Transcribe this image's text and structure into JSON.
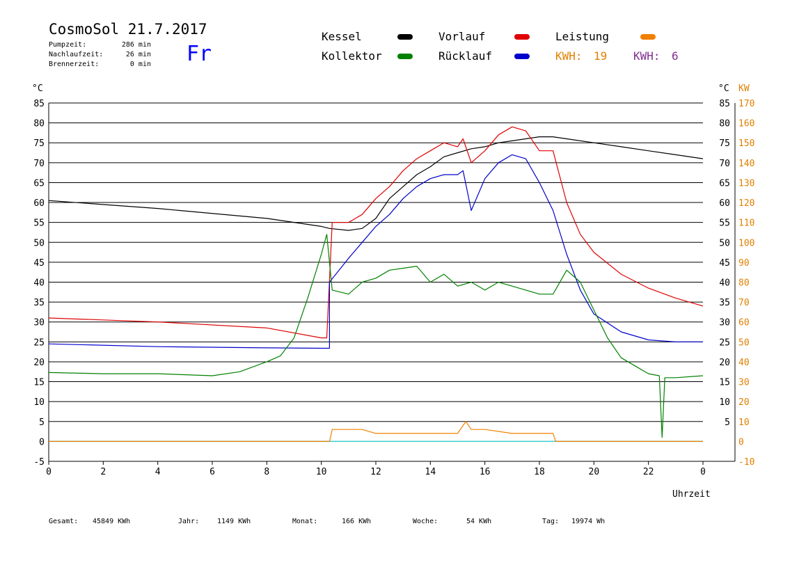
{
  "header": {
    "title": "CosmoSol 21.7.2017",
    "stats": [
      {
        "label": "Pumpzeit:",
        "value": "286 min"
      },
      {
        "label": "Nachlaufzeit:",
        "value": "26 min"
      },
      {
        "label": "Brennerzeit:",
        "value": "0 min"
      }
    ],
    "day": "Fr"
  },
  "legend": {
    "kessel": {
      "label": "Kessel",
      "color": "#000000"
    },
    "kollektor": {
      "label": "Kollektor",
      "color": "#008000"
    },
    "vorlauf": {
      "label": "Vorlauf",
      "color": "#e00000"
    },
    "ruecklauf": {
      "label": "Rücklauf",
      "color": "#0000cc"
    },
    "leistung": {
      "label": "Leistung",
      "color": "#f08000"
    },
    "kwh1": {
      "label": "KWH:",
      "value": "19",
      "color": "#e08000"
    },
    "kwh2": {
      "label": "KWH:",
      "value": "6",
      "color": "#803090"
    }
  },
  "footer": [
    {
      "label": "Gesamt:",
      "value": "45849 KWh"
    },
    {
      "label": "Jahr:",
      "value": "1149 KWh"
    },
    {
      "label": "Monat:",
      "value": "166 KWh"
    },
    {
      "label": "Woche:",
      "value": "54 KWh"
    },
    {
      "label": "Tag:",
      "value": "19974 Wh"
    }
  ],
  "chart_data": {
    "type": "line",
    "xlabel": "Uhrzeit",
    "ylabel_left": "°C",
    "ylabel_right": "°C",
    "ylabel_right2": "KW",
    "xlim": [
      0,
      24
    ],
    "ylim": [
      -5,
      85
    ],
    "ylim_right2": [
      -10,
      170
    ],
    "x_ticks": [
      "0",
      "2",
      "4",
      "6",
      "8",
      "10",
      "12",
      "14",
      "16",
      "18",
      "20",
      "22",
      "0"
    ],
    "y_ticks_left": [
      "85",
      "80",
      "75",
      "70",
      "65",
      "60",
      "55",
      "50",
      "45",
      "40",
      "35",
      "30",
      "25",
      "20",
      "15",
      "10",
      "5",
      "0",
      "-5"
    ],
    "y_ticks_right": [
      "85",
      "80",
      "75",
      "70",
      "65",
      "60",
      "55",
      "50",
      "45",
      "40",
      "35",
      "30",
      "25",
      "20",
      "15",
      "10",
      "5"
    ],
    "y_ticks_right2": [
      "170",
      "160",
      "150",
      "140",
      "130",
      "120",
      "110",
      "100",
      "90",
      "80",
      "70",
      "60",
      "50",
      "40",
      "30",
      "20",
      "10",
      "0",
      "-10"
    ],
    "grid": "horizontal",
    "series": [
      {
        "name": "Kessel",
        "color": "#000000",
        "x": [
          0,
          4,
          8,
          10,
          10.3,
          11,
          11.5,
          12,
          12.5,
          13,
          13.5,
          14,
          14.5,
          15,
          15.5,
          16,
          16.5,
          17,
          17.5,
          18,
          18.5,
          19,
          20,
          21,
          22,
          23,
          24
        ],
        "y": [
          60.5,
          58.5,
          56,
          54,
          53.5,
          53,
          53.5,
          56,
          61,
          64,
          67,
          69,
          71.5,
          72.5,
          73.5,
          74,
          75,
          75.5,
          76,
          76.5,
          76.5,
          76,
          75,
          74,
          73,
          72,
          71
        ]
      },
      {
        "name": "Vorlauf",
        "color": "#e00000",
        "x": [
          0,
          4,
          8,
          10,
          10.2,
          10.4,
          11,
          11.5,
          12,
          12.5,
          13,
          13.5,
          14,
          14.5,
          15,
          15.2,
          15.5,
          16,
          16.5,
          17,
          17.5,
          18,
          18.5,
          19,
          19.5,
          20,
          21,
          22,
          23,
          24
        ],
        "y": [
          31,
          30,
          28.5,
          26,
          26,
          55,
          55,
          57,
          61,
          64,
          68,
          71,
          73,
          75,
          74,
          76,
          70,
          73,
          77,
          79,
          78,
          73,
          73,
          60,
          52,
          47.5,
          42,
          38.5,
          36,
          34
        ]
      },
      {
        "name": "Rücklauf",
        "color": "#0000cc",
        "x": [
          0,
          4,
          8,
          10,
          10.3,
          10.3,
          11,
          11.5,
          12,
          12.5,
          13,
          13.5,
          14,
          14.5,
          15,
          15.2,
          15.5,
          16,
          16.5,
          17,
          17.5,
          18,
          18.5,
          19,
          19.5,
          20,
          21,
          22,
          23,
          24
        ],
        "y": [
          24.5,
          23.8,
          23.5,
          23.4,
          23.4,
          40,
          46,
          50,
          54,
          57,
          61,
          64,
          66,
          67,
          67,
          68,
          58,
          66,
          70,
          72,
          71,
          65,
          58,
          47,
          38,
          32,
          27.5,
          25.5,
          25,
          25
        ]
      },
      {
        "name": "Kollektor",
        "color": "#008000",
        "x": [
          0,
          2,
          4,
          6,
          7,
          8,
          8.5,
          9,
          9.5,
          10,
          10.2,
          10.4,
          11,
          11.5,
          12,
          12.5,
          13,
          13.5,
          14,
          14.5,
          15,
          15.5,
          16,
          16.5,
          17,
          17.5,
          18,
          18.5,
          19,
          19.5,
          20,
          20.5,
          21,
          21.5,
          22,
          22.4,
          22.5,
          22.6,
          23,
          24
        ],
        "y": [
          17.3,
          17,
          17,
          16.5,
          17.5,
          20,
          21.5,
          26,
          36,
          47,
          52,
          38,
          37,
          40,
          41,
          43,
          43.5,
          44,
          40,
          42,
          39,
          40,
          38,
          40,
          39,
          38,
          37,
          37,
          43,
          40,
          33,
          26,
          21,
          19,
          17,
          16.5,
          1,
          16,
          16,
          16.5
        ]
      },
      {
        "name": "Leistung",
        "color": "#f08000",
        "x": [
          0,
          10.3,
          10.4,
          11,
          11.5,
          12,
          13,
          14,
          15,
          15.3,
          15.5,
          16,
          17,
          18,
          18.5,
          18.6,
          24
        ],
        "y": [
          0,
          0,
          3,
          3,
          3,
          2,
          2,
          2,
          2,
          5,
          3,
          3,
          2,
          2,
          2,
          0,
          0
        ]
      }
    ]
  }
}
